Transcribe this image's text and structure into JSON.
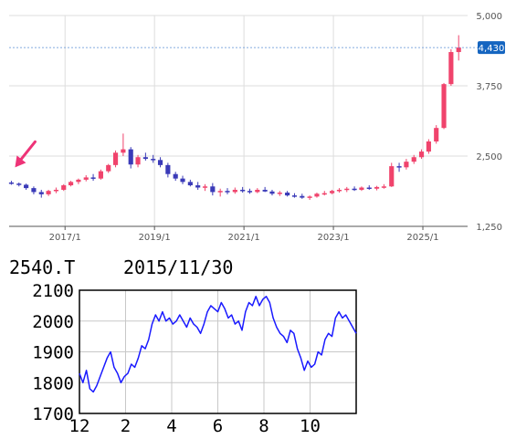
{
  "chart_data": [
    {
      "type": "candlestick",
      "y_axis_position": "right",
      "ylim": [
        1250,
        5000
      ],
      "y_ticks": [
        "5,000",
        "3,750",
        "2,500",
        "1,250"
      ],
      "y_tick_values": [
        5000,
        3750,
        2500,
        1250
      ],
      "x_ticks": [
        "2017/1",
        "2019/1",
        "2021/1",
        "2023/1",
        "2025/1"
      ],
      "x_tick_years": [
        2017,
        2019,
        2021,
        2023,
        2025
      ],
      "xlim_years": [
        2015.75,
        2026.0
      ],
      "current_price_label": "4,430",
      "current_price": 4430,
      "reference_line_value": 4430,
      "arrow_marker": {
        "color": "#ee3377",
        "points_to_year": 2015.8
      },
      "colors": {
        "up": "#f0436c",
        "down": "#3a3ab8",
        "price_badge": "#1565c0",
        "grid": "#dddddd"
      },
      "grid": true,
      "candles": [
        {
          "t": 2015.8,
          "o": 2030,
          "h": 2060,
          "l": 1990,
          "c": 2010
        },
        {
          "t": 2015.97,
          "o": 2010,
          "h": 2030,
          "l": 1960,
          "c": 1990
        },
        {
          "t": 2016.13,
          "o": 1990,
          "h": 2010,
          "l": 1900,
          "c": 1930
        },
        {
          "t": 2016.3,
          "o": 1930,
          "h": 1960,
          "l": 1820,
          "c": 1860
        },
        {
          "t": 2016.47,
          "o": 1860,
          "h": 1900,
          "l": 1760,
          "c": 1820
        },
        {
          "t": 2016.63,
          "o": 1820,
          "h": 1900,
          "l": 1790,
          "c": 1880
        },
        {
          "t": 2016.8,
          "o": 1880,
          "h": 1940,
          "l": 1840,
          "c": 1900
        },
        {
          "t": 2016.97,
          "o": 1900,
          "h": 2000,
          "l": 1880,
          "c": 1980
        },
        {
          "t": 2017.13,
          "o": 1980,
          "h": 2060,
          "l": 1960,
          "c": 2040
        },
        {
          "t": 2017.3,
          "o": 2040,
          "h": 2100,
          "l": 2000,
          "c": 2080
        },
        {
          "t": 2017.47,
          "o": 2080,
          "h": 2160,
          "l": 2050,
          "c": 2120
        },
        {
          "t": 2017.63,
          "o": 2120,
          "h": 2180,
          "l": 2060,
          "c": 2100
        },
        {
          "t": 2017.8,
          "o": 2100,
          "h": 2260,
          "l": 2080,
          "c": 2230
        },
        {
          "t": 2017.97,
          "o": 2230,
          "h": 2360,
          "l": 2200,
          "c": 2340
        },
        {
          "t": 2018.13,
          "o": 2340,
          "h": 2600,
          "l": 2300,
          "c": 2560
        },
        {
          "t": 2018.3,
          "o": 2560,
          "h": 2900,
          "l": 2500,
          "c": 2620
        },
        {
          "t": 2018.47,
          "o": 2620,
          "h": 2660,
          "l": 2280,
          "c": 2350
        },
        {
          "t": 2018.63,
          "o": 2350,
          "h": 2520,
          "l": 2300,
          "c": 2480
        },
        {
          "t": 2018.8,
          "o": 2480,
          "h": 2560,
          "l": 2420,
          "c": 2450
        },
        {
          "t": 2018.97,
          "o": 2450,
          "h": 2520,
          "l": 2380,
          "c": 2430
        },
        {
          "t": 2019.13,
          "o": 2430,
          "h": 2480,
          "l": 2300,
          "c": 2340
        },
        {
          "t": 2019.3,
          "o": 2340,
          "h": 2380,
          "l": 2120,
          "c": 2180
        },
        {
          "t": 2019.47,
          "o": 2180,
          "h": 2220,
          "l": 2060,
          "c": 2100
        },
        {
          "t": 2019.63,
          "o": 2100,
          "h": 2150,
          "l": 2000,
          "c": 2040
        },
        {
          "t": 2019.8,
          "o": 2040,
          "h": 2080,
          "l": 1960,
          "c": 1980
        },
        {
          "t": 2019.97,
          "o": 1980,
          "h": 2040,
          "l": 1900,
          "c": 1940
        },
        {
          "t": 2020.13,
          "o": 1940,
          "h": 2000,
          "l": 1880,
          "c": 1960
        },
        {
          "t": 2020.3,
          "o": 1960,
          "h": 2020,
          "l": 1800,
          "c": 1860
        },
        {
          "t": 2020.47,
          "o": 1860,
          "h": 1920,
          "l": 1780,
          "c": 1880
        },
        {
          "t": 2020.63,
          "o": 1880,
          "h": 1930,
          "l": 1820,
          "c": 1860
        },
        {
          "t": 2020.8,
          "o": 1860,
          "h": 1940,
          "l": 1830,
          "c": 1900
        },
        {
          "t": 2020.97,
          "o": 1900,
          "h": 1950,
          "l": 1850,
          "c": 1880
        },
        {
          "t": 2021.13,
          "o": 1880,
          "h": 1920,
          "l": 1830,
          "c": 1860
        },
        {
          "t": 2021.3,
          "o": 1860,
          "h": 1930,
          "l": 1840,
          "c": 1900
        },
        {
          "t": 2021.47,
          "o": 1900,
          "h": 1950,
          "l": 1860,
          "c": 1870
        },
        {
          "t": 2021.63,
          "o": 1870,
          "h": 1900,
          "l": 1800,
          "c": 1830
        },
        {
          "t": 2021.8,
          "o": 1830,
          "h": 1880,
          "l": 1790,
          "c": 1850
        },
        {
          "t": 2021.97,
          "o": 1850,
          "h": 1880,
          "l": 1780,
          "c": 1800
        },
        {
          "t": 2022.13,
          "o": 1800,
          "h": 1840,
          "l": 1760,
          "c": 1790
        },
        {
          "t": 2022.3,
          "o": 1790,
          "h": 1830,
          "l": 1740,
          "c": 1760
        },
        {
          "t": 2022.47,
          "o": 1760,
          "h": 1800,
          "l": 1720,
          "c": 1780
        },
        {
          "t": 2022.63,
          "o": 1780,
          "h": 1850,
          "l": 1760,
          "c": 1830
        },
        {
          "t": 2022.8,
          "o": 1830,
          "h": 1880,
          "l": 1800,
          "c": 1840
        },
        {
          "t": 2022.97,
          "o": 1840,
          "h": 1900,
          "l": 1820,
          "c": 1880
        },
        {
          "t": 2023.13,
          "o": 1880,
          "h": 1930,
          "l": 1850,
          "c": 1900
        },
        {
          "t": 2023.3,
          "o": 1900,
          "h": 1950,
          "l": 1860,
          "c": 1920
        },
        {
          "t": 2023.47,
          "o": 1920,
          "h": 1960,
          "l": 1880,
          "c": 1900
        },
        {
          "t": 2023.63,
          "o": 1900,
          "h": 1960,
          "l": 1880,
          "c": 1940
        },
        {
          "t": 2023.8,
          "o": 1940,
          "h": 1980,
          "l": 1900,
          "c": 1920
        },
        {
          "t": 2023.97,
          "o": 1920,
          "h": 1970,
          "l": 1890,
          "c": 1950
        },
        {
          "t": 2024.13,
          "o": 1950,
          "h": 2000,
          "l": 1920,
          "c": 1960
        },
        {
          "t": 2024.3,
          "o": 1960,
          "h": 2380,
          "l": 1950,
          "c": 2320
        },
        {
          "t": 2024.47,
          "o": 2320,
          "h": 2380,
          "l": 2220,
          "c": 2300
        },
        {
          "t": 2024.63,
          "o": 2300,
          "h": 2450,
          "l": 2260,
          "c": 2400
        },
        {
          "t": 2024.8,
          "o": 2400,
          "h": 2520,
          "l": 2360,
          "c": 2480
        },
        {
          "t": 2024.97,
          "o": 2480,
          "h": 2620,
          "l": 2450,
          "c": 2580
        },
        {
          "t": 2025.13,
          "o": 2580,
          "h": 2800,
          "l": 2540,
          "c": 2760
        },
        {
          "t": 2025.3,
          "o": 2760,
          "h": 3050,
          "l": 2720,
          "c": 3000
        },
        {
          "t": 2025.47,
          "o": 3000,
          "h": 3800,
          "l": 2980,
          "c": 3780
        },
        {
          "t": 2025.63,
          "o": 3780,
          "h": 4400,
          "l": 3750,
          "c": 4350
        },
        {
          "t": 2025.8,
          "o": 4350,
          "h": 4650,
          "l": 4200,
          "c": 4430
        }
      ]
    },
    {
      "type": "line",
      "title_code": "2540.T",
      "title_date": "2015/11/30",
      "ylim": [
        1700,
        2100
      ],
      "y_ticks": [
        "2100",
        "2000",
        "1900",
        "1800",
        "1700"
      ],
      "y_tick_values": [
        2100,
        2000,
        1900,
        1800,
        1700
      ],
      "x_ticks": [
        "12",
        "2",
        "4",
        "6",
        "8",
        "10"
      ],
      "x_tick_months": [
        0,
        2,
        4,
        6,
        8,
        10
      ],
      "xlim_months": [
        0,
        12
      ],
      "grid": true,
      "colors": {
        "line": "#1a1aff",
        "grid": "#c8c8c8"
      },
      "series": [
        {
          "x": [
            0,
            0.15,
            0.3,
            0.45,
            0.6,
            0.75,
            0.9,
            1.05,
            1.2,
            1.35,
            1.5,
            1.65,
            1.8,
            1.95,
            2.1,
            2.25,
            2.4,
            2.55,
            2.7,
            2.85,
            3.0,
            3.15,
            3.3,
            3.45,
            3.6,
            3.75,
            3.9,
            4.05,
            4.2,
            4.35,
            4.5,
            4.65,
            4.8,
            4.95,
            5.1,
            5.25,
            5.4,
            5.55,
            5.7,
            5.85,
            6.0,
            6.15,
            6.3,
            6.45,
            6.6,
            6.75,
            6.9,
            7.05,
            7.2,
            7.35,
            7.5,
            7.65,
            7.8,
            7.95,
            8.1,
            8.25,
            8.4,
            8.55,
            8.7,
            8.85,
            9.0,
            9.15,
            9.3,
            9.45,
            9.6,
            9.75,
            9.9,
            10.05,
            10.2,
            10.35,
            10.5,
            10.65,
            10.8,
            10.95,
            11.1,
            11.25,
            11.4,
            11.55,
            11.7,
            11.85,
            12.0
          ],
          "values": [
            1830,
            1800,
            1840,
            1780,
            1770,
            1790,
            1820,
            1850,
            1880,
            1900,
            1850,
            1830,
            1800,
            1820,
            1830,
            1860,
            1850,
            1880,
            1920,
            1910,
            1940,
            1990,
            2020,
            2000,
            2030,
            2000,
            2010,
            1990,
            2000,
            2020,
            2000,
            1980,
            2010,
            1990,
            1980,
            1960,
            1990,
            2030,
            2050,
            2040,
            2030,
            2060,
            2040,
            2010,
            2020,
            1990,
            2000,
            1970,
            2030,
            2060,
            2050,
            2080,
            2050,
            2070,
            2080,
            2060,
            2010,
            1980,
            1960,
            1950,
            1930,
            1970,
            1960,
            1910,
            1880,
            1840,
            1870,
            1850,
            1860,
            1900,
            1890,
            1940,
            1960,
            1950,
            2010,
            2030,
            2010,
            2020,
            2000,
            1980,
            1960
          ]
        }
      ]
    }
  ]
}
